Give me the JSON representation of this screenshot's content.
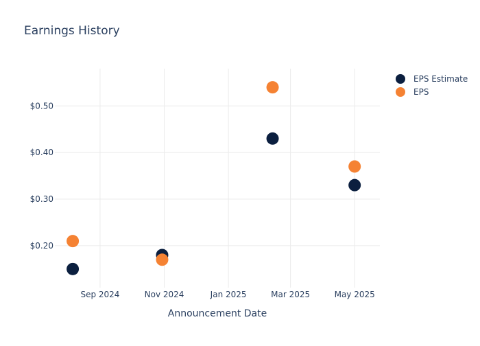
{
  "chart_data": {
    "type": "scatter",
    "title": "Earnings History",
    "xlabel": "Announcement Date",
    "ylabel": "",
    "x": [
      "2024-08-06",
      "2024-10-30",
      "2025-02-12",
      "2025-05-01"
    ],
    "x_range": [
      "2024-07-20",
      "2025-05-25"
    ],
    "ylim": [
      0.11,
      0.58
    ],
    "x_tick_labels": [
      {
        "date": "2024-09-01",
        "label": "Sep 2024"
      },
      {
        "date": "2024-11-01",
        "label": "Nov 2024"
      },
      {
        "date": "2025-01-01",
        "label": "Jan 2025"
      },
      {
        "date": "2025-03-01",
        "label": "Mar 2025"
      },
      {
        "date": "2025-05-01",
        "label": "May 2025"
      }
    ],
    "y_ticks": [
      {
        "value": 0.2,
        "label": "$0.20"
      },
      {
        "value": 0.3,
        "label": "$0.30"
      },
      {
        "value": 0.4,
        "label": "$0.40"
      },
      {
        "value": 0.5,
        "label": "$0.50"
      }
    ],
    "series": [
      {
        "name": "EPS Estimate",
        "color": "#0b1f3f",
        "values": [
          0.15,
          0.18,
          0.43,
          0.33
        ]
      },
      {
        "name": "EPS",
        "color": "#f58233",
        "values": [
          0.21,
          0.17,
          0.54,
          0.37
        ]
      }
    ],
    "grid": true,
    "legend_position": "top-right"
  },
  "colors": {
    "title": "#2a3f5f",
    "tick_text": "#2a3f5f",
    "grid": "#ebebeb"
  }
}
